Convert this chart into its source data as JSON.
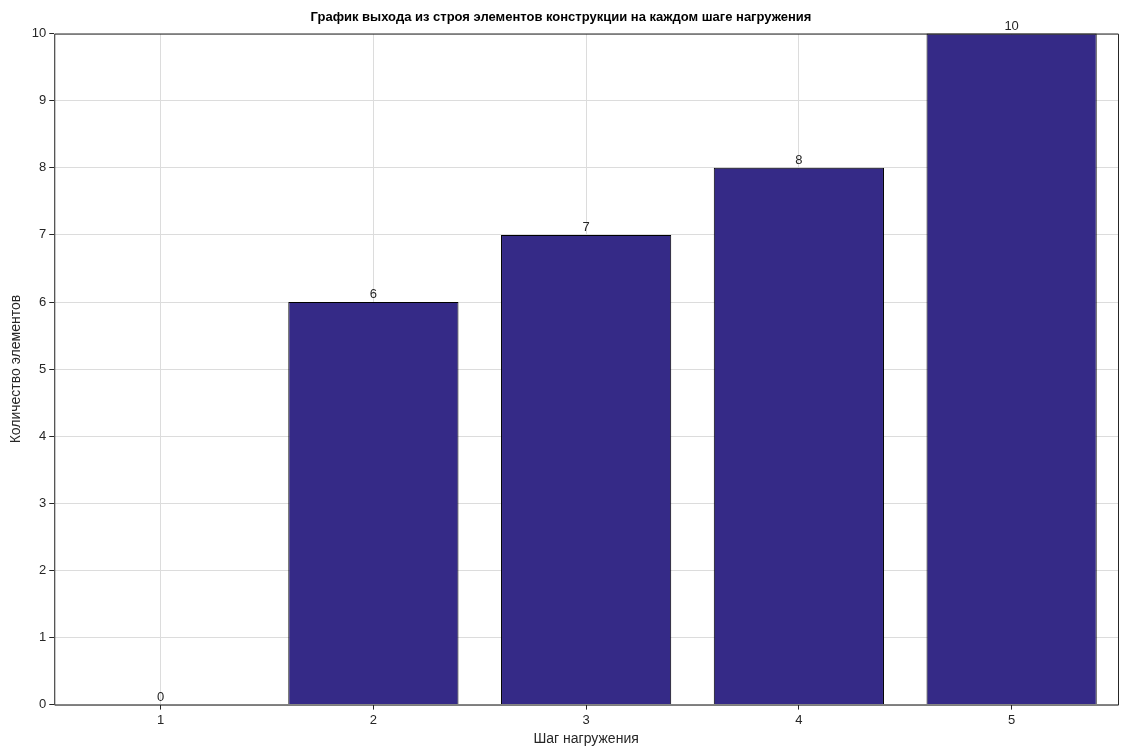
{
  "chart_data": {
    "type": "bar",
    "title": "График выхода из строя элементов конструкции на каждом шаге нагружения",
    "xlabel": "Шаг нагружения",
    "ylabel": "Количество элементов",
    "categories": [
      "1",
      "2",
      "3",
      "4",
      "5"
    ],
    "values": [
      0,
      6,
      7,
      8,
      10
    ],
    "color": "#352a87",
    "ylim": [
      0,
      10
    ],
    "yticks": [
      0,
      1,
      2,
      3,
      4,
      5,
      6,
      7,
      8,
      9,
      10
    ],
    "grid": true,
    "data_labels": true
  }
}
